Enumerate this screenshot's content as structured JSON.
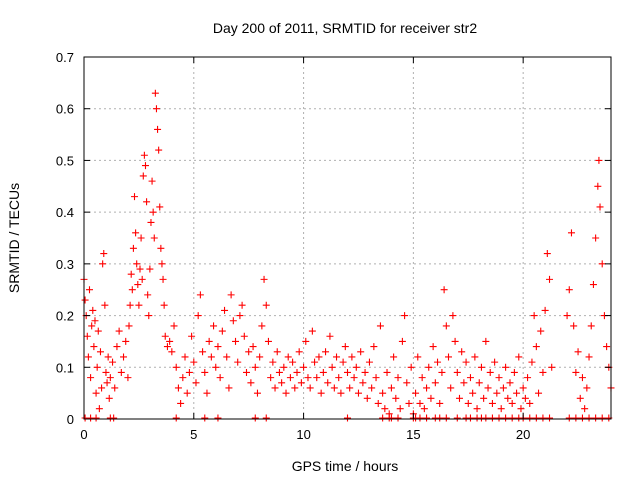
{
  "chart_data": {
    "type": "scatter",
    "title": "Day 200 of 2011, SRMTID for receiver str2",
    "xlabel": "GPS time / hours",
    "ylabel": "SRMTID / TECUs",
    "xlim": [
      0,
      24
    ],
    "ylim": [
      0,
      0.7
    ],
    "x_ticks": [
      0,
      5,
      10,
      15,
      20
    ],
    "x_tick_labels": [
      "0",
      "5",
      "10",
      "15",
      "20"
    ],
    "y_ticks": [
      0,
      0.1,
      0.2,
      0.3,
      0.4,
      0.5,
      0.6,
      0.7
    ],
    "y_tick_labels": [
      "0",
      "0.1",
      "0.2",
      "0.3",
      "0.4",
      "0.5",
      "0.6",
      "0.7"
    ],
    "grid": true,
    "marker": "plus",
    "series": [
      {
        "name": "SRMTID",
        "color": "#ff0000",
        "points": [
          [
            0.0,
            0.27
          ],
          [
            0.05,
            0.23
          ],
          [
            0.1,
            0.2
          ],
          [
            0.15,
            0.16
          ],
          [
            0.2,
            0.12
          ],
          [
            0.25,
            0.25
          ],
          [
            0.3,
            0.08
          ],
          [
            0.35,
            0.18
          ],
          [
            0.4,
            0.21
          ],
          [
            0.45,
            0.14
          ],
          [
            0.5,
            0.19
          ],
          [
            0.55,
            0.05
          ],
          [
            0.6,
            0.1
          ],
          [
            0.65,
            0.17
          ],
          [
            0.7,
            0.02
          ],
          [
            0.75,
            0.13
          ],
          [
            0.8,
            0.06
          ],
          [
            0.85,
            0.3
          ],
          [
            0.9,
            0.32
          ],
          [
            0.95,
            0.22
          ],
          [
            1.0,
            0.09
          ],
          [
            1.05,
            0.07
          ],
          [
            1.1,
            0.12
          ],
          [
            1.15,
            0.04
          ],
          [
            1.2,
            0.08
          ],
          [
            1.3,
            0.11
          ],
          [
            1.4,
            0.06
          ],
          [
            1.5,
            0.14
          ],
          [
            1.6,
            0.17
          ],
          [
            1.7,
            0.09
          ],
          [
            1.8,
            0.12
          ],
          [
            1.9,
            0.15
          ],
          [
            2.0,
            0.08
          ],
          [
            2.05,
            0.18
          ],
          [
            2.1,
            0.22
          ],
          [
            2.15,
            0.28
          ],
          [
            2.2,
            0.25
          ],
          [
            2.25,
            0.33
          ],
          [
            2.3,
            0.43
          ],
          [
            2.35,
            0.36
          ],
          [
            2.4,
            0.3
          ],
          [
            2.45,
            0.26
          ],
          [
            2.5,
            0.22
          ],
          [
            2.55,
            0.29
          ],
          [
            2.6,
            0.35
          ],
          [
            2.65,
            0.27
          ],
          [
            2.7,
            0.47
          ],
          [
            2.75,
            0.51
          ],
          [
            2.8,
            0.49
          ],
          [
            2.85,
            0.42
          ],
          [
            2.9,
            0.24
          ],
          [
            2.95,
            0.2
          ],
          [
            3.0,
            0.29
          ],
          [
            3.05,
            0.38
          ],
          [
            3.1,
            0.46
          ],
          [
            3.15,
            0.4
          ],
          [
            3.2,
            0.35
          ],
          [
            3.25,
            0.63
          ],
          [
            3.3,
            0.6
          ],
          [
            3.35,
            0.56
          ],
          [
            3.4,
            0.52
          ],
          [
            3.45,
            0.41
          ],
          [
            3.5,
            0.33
          ],
          [
            3.55,
            0.3
          ],
          [
            3.6,
            0.27
          ],
          [
            3.65,
            0.22
          ],
          [
            3.7,
            0.16
          ],
          [
            3.8,
            0.14
          ],
          [
            3.9,
            0.15
          ],
          [
            4.0,
            0.13
          ],
          [
            4.1,
            0.18
          ],
          [
            4.2,
            0.1
          ],
          [
            4.3,
            0.06
          ],
          [
            4.4,
            0.03
          ],
          [
            4.5,
            0.08
          ],
          [
            4.6,
            0.12
          ],
          [
            4.7,
            0.05
          ],
          [
            4.8,
            0.09
          ],
          [
            4.9,
            0.16
          ],
          [
            5.0,
            0.11
          ],
          [
            5.1,
            0.07
          ],
          [
            5.2,
            0.2
          ],
          [
            5.3,
            0.24
          ],
          [
            5.4,
            0.13
          ],
          [
            5.5,
            0.09
          ],
          [
            5.6,
            0.05
          ],
          [
            5.7,
            0.15
          ],
          [
            5.8,
            0.12
          ],
          [
            5.9,
            0.18
          ],
          [
            6.0,
            0.1
          ],
          [
            6.1,
            0.14
          ],
          [
            6.2,
            0.08
          ],
          [
            6.3,
            0.17
          ],
          [
            6.4,
            0.21
          ],
          [
            6.5,
            0.12
          ],
          [
            6.6,
            0.06
          ],
          [
            6.7,
            0.24
          ],
          [
            6.8,
            0.19
          ],
          [
            6.9,
            0.15
          ],
          [
            7.0,
            0.11
          ],
          [
            7.1,
            0.2
          ],
          [
            7.2,
            0.22
          ],
          [
            7.3,
            0.16
          ],
          [
            7.4,
            0.09
          ],
          [
            7.5,
            0.13
          ],
          [
            7.6,
            0.07
          ],
          [
            7.7,
            0.14
          ],
          [
            7.8,
            0.1
          ],
          [
            7.9,
            0.05
          ],
          [
            8.0,
            0.12
          ],
          [
            8.1,
            0.18
          ],
          [
            8.2,
            0.27
          ],
          [
            8.3,
            0.22
          ],
          [
            8.4,
            0.15
          ],
          [
            8.5,
            0.08
          ],
          [
            8.6,
            0.11
          ],
          [
            8.7,
            0.06
          ],
          [
            8.8,
            0.13
          ],
          [
            8.9,
            0.09
          ],
          [
            9.0,
            0.07
          ],
          [
            9.1,
            0.1
          ],
          [
            9.2,
            0.05
          ],
          [
            9.3,
            0.12
          ],
          [
            9.4,
            0.08
          ],
          [
            9.5,
            0.11
          ],
          [
            9.6,
            0.06
          ],
          [
            9.7,
            0.09
          ],
          [
            9.8,
            0.13
          ],
          [
            9.9,
            0.07
          ],
          [
            10.0,
            0.1
          ],
          [
            10.1,
            0.15
          ],
          [
            10.2,
            0.08
          ],
          [
            10.3,
            0.06
          ],
          [
            10.4,
            0.17
          ],
          [
            10.5,
            0.11
          ],
          [
            10.6,
            0.08
          ],
          [
            10.7,
            0.12
          ],
          [
            10.8,
            0.05
          ],
          [
            10.9,
            0.09
          ],
          [
            11.0,
            0.13
          ],
          [
            11.1,
            0.07
          ],
          [
            11.2,
            0.16
          ],
          [
            11.3,
            0.1
          ],
          [
            11.4,
            0.06
          ],
          [
            11.5,
            0.12
          ],
          [
            11.6,
            0.08
          ],
          [
            11.7,
            0.05
          ],
          [
            11.8,
            0.11
          ],
          [
            11.9,
            0.14
          ],
          [
            12.0,
            0.09
          ],
          [
            12.1,
            0.06
          ],
          [
            12.2,
            0.12
          ],
          [
            12.3,
            0.08
          ],
          [
            12.4,
            0.1
          ],
          [
            12.5,
            0.05
          ],
          [
            12.6,
            0.13
          ],
          [
            12.7,
            0.07
          ],
          [
            12.8,
            0.09
          ],
          [
            12.9,
            0.04
          ],
          [
            13.0,
            0.11
          ],
          [
            13.1,
            0.06
          ],
          [
            13.2,
            0.14
          ],
          [
            13.3,
            0.08
          ],
          [
            13.4,
            0.03
          ],
          [
            13.5,
            0.18
          ],
          [
            13.6,
            0.05
          ],
          [
            13.7,
            0.02
          ],
          [
            13.8,
            0.09
          ],
          [
            13.9,
            0.01
          ],
          [
            14.0,
            0.06
          ],
          [
            14.1,
            0.12
          ],
          [
            14.2,
            0.04
          ],
          [
            14.3,
            0.08
          ],
          [
            14.4,
            0.02
          ],
          [
            14.5,
            0.15
          ],
          [
            14.6,
            0.2
          ],
          [
            14.7,
            0.07
          ],
          [
            14.8,
            0.03
          ],
          [
            14.9,
            0.1
          ],
          [
            15.0,
            0.01
          ],
          [
            15.1,
            0.05
          ],
          [
            15.2,
            0.12
          ],
          [
            15.3,
            0.03
          ],
          [
            15.4,
            0.08
          ],
          [
            15.5,
            0.02
          ],
          [
            15.6,
            0.06
          ],
          [
            15.7,
            0.1
          ],
          [
            15.8,
            0.04
          ],
          [
            15.9,
            0.14
          ],
          [
            16.0,
            0.07
          ],
          [
            16.1,
            0.11
          ],
          [
            16.2,
            0.03
          ],
          [
            16.3,
            0.09
          ],
          [
            16.4,
            0.25
          ],
          [
            16.5,
            0.18
          ],
          [
            16.6,
            0.12
          ],
          [
            16.7,
            0.06
          ],
          [
            16.8,
            0.2
          ],
          [
            16.9,
            0.15
          ],
          [
            17.0,
            0.09
          ],
          [
            17.1,
            0.04
          ],
          [
            17.2,
            0.13
          ],
          [
            17.3,
            0.07
          ],
          [
            17.4,
            0.11
          ],
          [
            17.5,
            0.03
          ],
          [
            17.6,
            0.08
          ],
          [
            17.7,
            0.05
          ],
          [
            17.8,
            0.12
          ],
          [
            17.9,
            0.02
          ],
          [
            18.0,
            0.07
          ],
          [
            18.1,
            0.1
          ],
          [
            18.2,
            0.04
          ],
          [
            18.3,
            0.15
          ],
          [
            18.4,
            0.06
          ],
          [
            18.5,
            0.09
          ],
          [
            18.6,
            0.03
          ],
          [
            18.7,
            0.11
          ],
          [
            18.8,
            0.05
          ],
          [
            18.9,
            0.08
          ],
          [
            19.0,
            0.02
          ],
          [
            19.1,
            0.06
          ],
          [
            19.2,
            0.1
          ],
          [
            19.3,
            0.04
          ],
          [
            19.4,
            0.07
          ],
          [
            19.5,
            0.03
          ],
          [
            19.6,
            0.09
          ],
          [
            19.7,
            0.05
          ],
          [
            19.8,
            0.12
          ],
          [
            19.9,
            0.02
          ],
          [
            20.0,
            0.06
          ],
          [
            20.1,
            0.04
          ],
          [
            20.2,
            0.08
          ],
          [
            20.3,
            0.03
          ],
          [
            20.4,
            0.11
          ],
          [
            20.5,
            0.2
          ],
          [
            20.6,
            0.14
          ],
          [
            20.7,
            0.05
          ],
          [
            20.8,
            0.17
          ],
          [
            20.9,
            0.09
          ],
          [
            21.0,
            0.21
          ],
          [
            21.1,
            0.32
          ],
          [
            21.2,
            0.27
          ],
          [
            21.3,
            0.1
          ],
          [
            22.0,
            0.2
          ],
          [
            22.1,
            0.25
          ],
          [
            22.2,
            0.36
          ],
          [
            22.3,
            0.18
          ],
          [
            22.4,
            0.09
          ],
          [
            22.5,
            0.13
          ],
          [
            22.6,
            0.04
          ],
          [
            22.7,
            0.08
          ],
          [
            22.8,
            0.02
          ],
          [
            22.9,
            0.06
          ],
          [
            23.0,
            0.12
          ],
          [
            23.1,
            0.18
          ],
          [
            23.2,
            0.26
          ],
          [
            23.3,
            0.35
          ],
          [
            23.4,
            0.45
          ],
          [
            23.45,
            0.5
          ],
          [
            23.5,
            0.41
          ],
          [
            23.6,
            0.3
          ],
          [
            23.7,
            0.2
          ],
          [
            23.8,
            0.14
          ],
          [
            23.9,
            0.1
          ],
          [
            24.0,
            0.06
          ]
        ],
        "zero_points": [
          0.05,
          0.3,
          0.55,
          1.2,
          1.35,
          4.2,
          5.5,
          6.1,
          7.8,
          8.3,
          12.0,
          13.6,
          13.9,
          14.0,
          14.3,
          15.0,
          15.1,
          15.3,
          15.6,
          16.0,
          16.2,
          16.5,
          17.0,
          17.4,
          17.6,
          17.9,
          18.1,
          18.3,
          18.6,
          18.9,
          19.2,
          19.5,
          19.8,
          20.0,
          20.3,
          20.6,
          20.9,
          21.2,
          22.1,
          22.4,
          22.7,
          23.0,
          23.3,
          23.6,
          23.9
        ]
      }
    ]
  }
}
